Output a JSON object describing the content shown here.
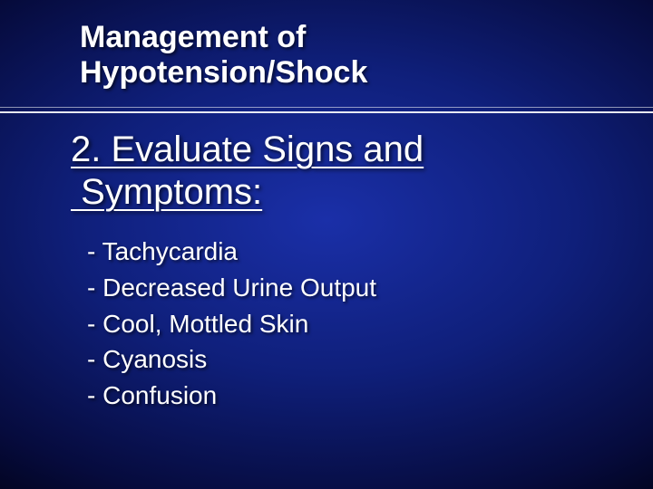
{
  "slide": {
    "title": "Management of\nHypotension/Shock",
    "subtitle": "2. Evaluate Signs and\n Symptoms:",
    "bullets": [
      "- Tachycardia",
      "- Decreased Urine Output",
      "- Cool, Mottled Skin",
      "- Cyanosis",
      "- Confusion"
    ],
    "style": {
      "background_gradient_inner": "#1a2fa8",
      "background_gradient_mid": "#0f1f7a",
      "background_gradient_outer": "#020420",
      "text_color": "#ffffff",
      "title_fontsize": 34,
      "subtitle_fontsize": 40,
      "bullet_fontsize": 28,
      "font_family": "Verdana",
      "divider_color": "#ffffff",
      "aspect": [
        720,
        540
      ]
    }
  }
}
